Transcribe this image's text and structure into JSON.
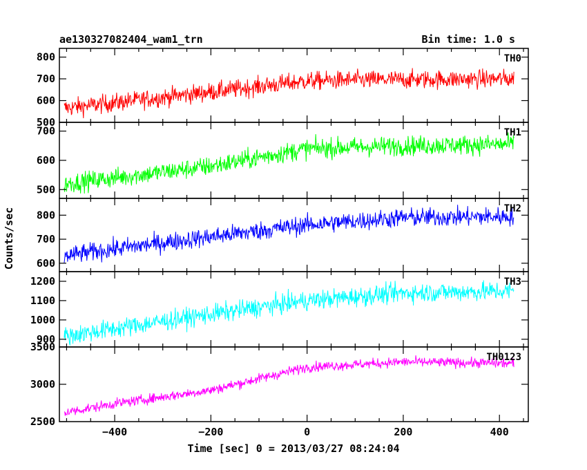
{
  "header": {
    "title": "ae130327082404_wam1_trn",
    "bin_time": "Bin time: 1.0 s"
  },
  "chart_data": {
    "type": "line",
    "title": "ae130327082404_wam1_trn",
    "subtitle": "Bin time: 1.0 s",
    "xlabel": "Time [sec] 0 = 2013/03/27 08:24:04",
    "ylabel": "Counts/sec",
    "xlim": [
      -515,
      460
    ],
    "x_ticks": [
      -400,
      -200,
      0,
      200,
      400
    ],
    "x_tick_labels": [
      "−400",
      "−200",
      "0",
      "200",
      "400"
    ],
    "x_range": [
      -505,
      430
    ],
    "grid": false,
    "panels": [
      {
        "name": "TH0",
        "color": "#ff0000",
        "ylim": [
          500,
          840
        ],
        "yticks": [
          500,
          600,
          700,
          800
        ],
        "trend": [
          [
            -505,
            565
          ],
          [
            -400,
            590
          ],
          [
            -200,
            640
          ],
          [
            0,
            690
          ],
          [
            100,
            695
          ],
          [
            430,
            700
          ]
        ],
        "noise": 38
      },
      {
        "name": "TH1",
        "color": "#00ff00",
        "ylim": [
          470,
          730
        ],
        "yticks": [
          500,
          600,
          700
        ],
        "trend": [
          [
            -505,
            520
          ],
          [
            -400,
            540
          ],
          [
            -200,
            580
          ],
          [
            0,
            640
          ],
          [
            200,
            650
          ],
          [
            430,
            655
          ]
        ],
        "noise": 30
      },
      {
        "name": "TH2",
        "color": "#0000ff",
        "ylim": [
          565,
          870
        ],
        "yticks": [
          600,
          700,
          800
        ],
        "trend": [
          [
            -505,
            630
          ],
          [
            -400,
            660
          ],
          [
            -200,
            710
          ],
          [
            0,
            760
          ],
          [
            200,
            790
          ],
          [
            430,
            795
          ]
        ],
        "noise": 35
      },
      {
        "name": "TH3",
        "color": "#00ffff",
        "ylim": [
          860,
          1250
        ],
        "yticks": [
          900,
          1000,
          1100,
          1200
        ],
        "trend": [
          [
            -505,
            915
          ],
          [
            -400,
            955
          ],
          [
            -200,
            1030
          ],
          [
            0,
            1100
          ],
          [
            200,
            1140
          ],
          [
            430,
            1150
          ]
        ],
        "noise": 45
      },
      {
        "name": "TH0123",
        "color": "#ff00ff",
        "ylim": [
          2500,
          3500
        ],
        "yticks": [
          2500,
          3000,
          3500
        ],
        "trend": [
          [
            -505,
            2620
          ],
          [
            -400,
            2740
          ],
          [
            -200,
            2920
          ],
          [
            0,
            3230
          ],
          [
            200,
            3300
          ],
          [
            430,
            3280
          ]
        ],
        "noise": 60
      }
    ]
  }
}
